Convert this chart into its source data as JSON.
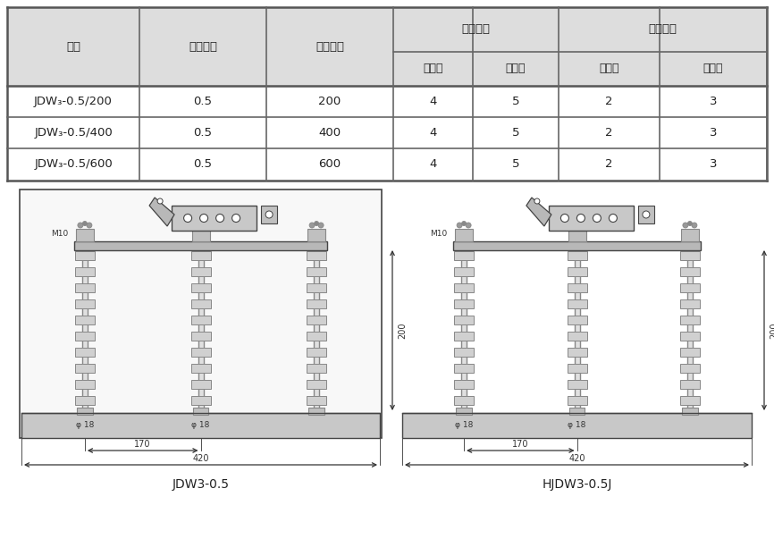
{
  "bg_color": "#ffffff",
  "table_bg_header": "#dddddd",
  "table_bg_white": "#ffffff",
  "table_thick_color": "#666666",
  "table_thin_color": "#999999",
  "col_headers_1": [
    "型号",
    "额定电压",
    "额定电流",
    "冲击耐压",
    "冲击耐压"
  ],
  "col_sub": [
    "相对地",
    "断口间",
    "相对地",
    "断口间"
  ],
  "rows": [
    [
      "JDW₃-0.5/200",
      "0.5",
      "200",
      "4",
      "5",
      "2",
      "3"
    ],
    [
      "JDW₃-0.5/400",
      "0.5",
      "400",
      "4",
      "5",
      "2",
      "3"
    ],
    [
      "JDW₃-0.5/600",
      "0.5",
      "600",
      "4",
      "5",
      "2",
      "3"
    ]
  ],
  "diagram1_label": "JDW3-0.5",
  "diagram2_label": "HJDW3-0.5J",
  "line_color": "#444444",
  "dim_color": "#333333",
  "text_color": "#222222",
  "gray_light": "#cccccc",
  "gray_mid": "#aaaaaa",
  "gray_dark": "#888888"
}
